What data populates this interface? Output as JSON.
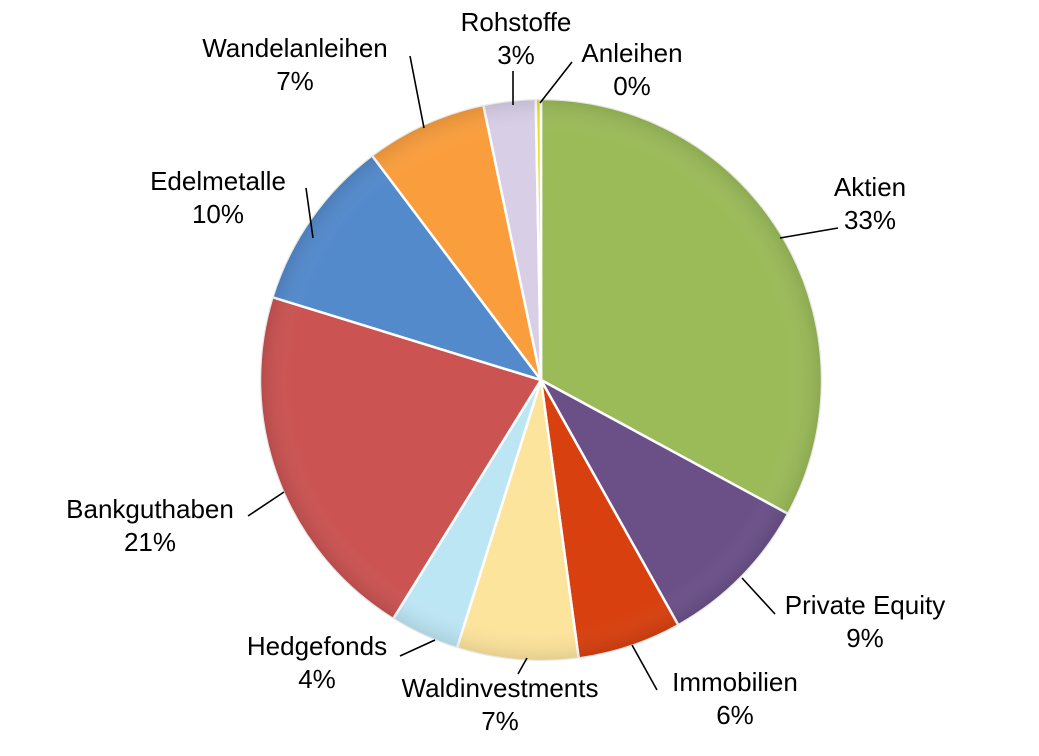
{
  "chart_data": {
    "type": "pie",
    "start_angle_deg": 0,
    "direction": "clockwise",
    "slices": [
      {
        "label": "Aktien",
        "value": 33,
        "value_label": "33%",
        "color": "#9BBB59"
      },
      {
        "label": "Private Equity",
        "value": 9,
        "value_label": "9%",
        "color": "#6B5088"
      },
      {
        "label": "Immobilien",
        "value": 6,
        "value_label": "6%",
        "color": "#D8400F"
      },
      {
        "label": "Waldinvestments",
        "value": 7,
        "value_label": "7%",
        "color": "#FDE49C"
      },
      {
        "label": "Hedgefonds",
        "value": 4,
        "value_label": "4%",
        "color": "#BDE6F5"
      },
      {
        "label": "Bankguthaben",
        "value": 21,
        "value_label": "21%",
        "color": "#CB5352"
      },
      {
        "label": "Edelmetalle",
        "value": 10,
        "value_label": "10%",
        "color": "#538ACC"
      },
      {
        "label": "Wandelanleihen",
        "value": 7,
        "value_label": "7%",
        "color": "#FA9E3D"
      },
      {
        "label": "Rohstoffe",
        "value": 3,
        "value_label": "3%",
        "color": "#D8CFE7"
      },
      {
        "label": "Anleihen",
        "value": 0.3,
        "value_label": "0%",
        "color": "#E4E232"
      }
    ]
  }
}
